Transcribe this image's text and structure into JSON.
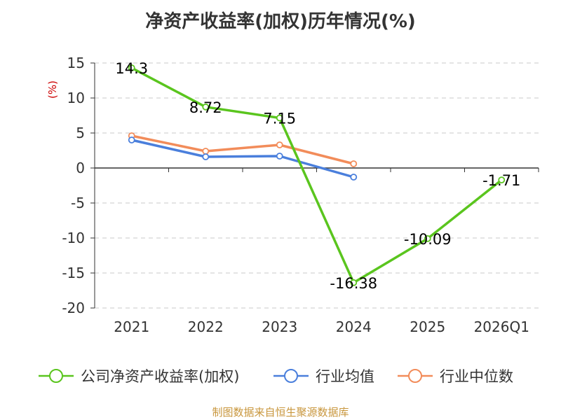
{
  "title": "净资产收益率(加权)历年情况(%)",
  "source": "制图数据来自恒生聚源数据库",
  "chart_data": {
    "type": "line",
    "title": "净资产收益率(加权)历年情况(%)",
    "ylabel": "(%)",
    "xlabel": "",
    "categories": [
      "2021",
      "2022",
      "2023",
      "2024",
      "2025",
      "2026Q1"
    ],
    "ylim": [
      -20,
      15
    ],
    "yticks": [
      15,
      10,
      5,
      0,
      -5,
      -10,
      -15,
      -20
    ],
    "grid": true,
    "legend_position": "bottom",
    "series": [
      {
        "name": "公司净资产收益率(加权)",
        "color": "#5ac51e",
        "values": [
          14.3,
          8.72,
          7.15,
          -16.38,
          -10.09,
          -1.71
        ],
        "labels": [
          "14.3",
          "8.72",
          "7.15",
          "-16.38",
          "-10.09",
          "-1.71"
        ],
        "show_labels": true
      },
      {
        "name": "行业均值",
        "color": "#4a7fdc",
        "values": [
          4.0,
          1.6,
          1.7,
          -1.3,
          null,
          null
        ],
        "show_labels": false
      },
      {
        "name": "行业中位数",
        "color": "#f28c5a",
        "values": [
          4.6,
          2.4,
          3.3,
          0.6,
          null,
          null
        ],
        "show_labels": false
      }
    ]
  }
}
